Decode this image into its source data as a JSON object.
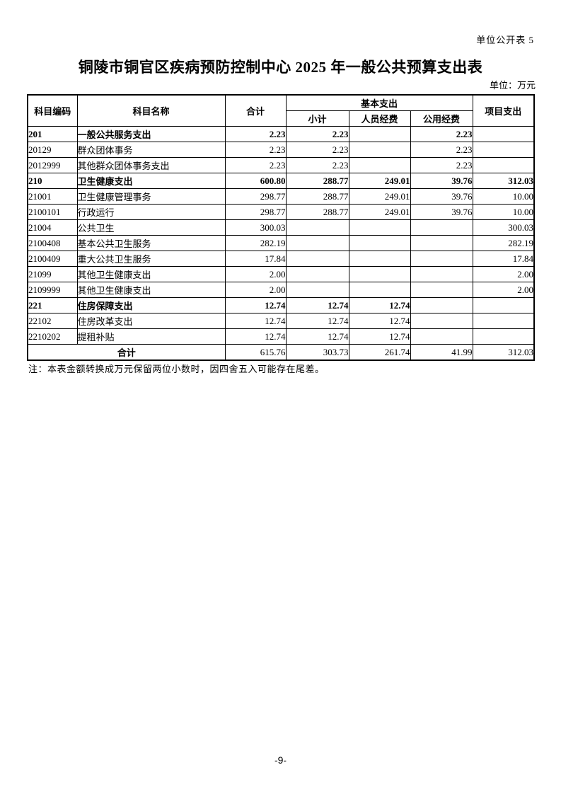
{
  "page": {
    "corner_label": "单位公开表 5",
    "title": "铜陵市铜官区疾病预防控制中心 2025 年一般公共预算支出表",
    "unit_label": "单位：万元",
    "note": "注：本表金额转换成万元保留两位小数时，因四舍五入可能存在尾差。",
    "page_number": "-9-"
  },
  "table": {
    "headers": {
      "code": "科目编码",
      "name": "科目名称",
      "total": "合计",
      "basic_group": "基本支出",
      "basic_subtotal": "小计",
      "personnel": "人员经费",
      "public_funds": "公用经费",
      "project": "项目支出"
    },
    "rows": [
      {
        "code": "201",
        "name": "一般公共服务支出",
        "indent": 0,
        "bold": true,
        "total": "2.23",
        "subtotal": "2.23",
        "personnel": "",
        "public_funds": "2.23",
        "project": ""
      },
      {
        "code": "20129",
        "name": "群众团体事务",
        "indent": 1,
        "bold": false,
        "total": "2.23",
        "subtotal": "2.23",
        "personnel": "",
        "public_funds": "2.23",
        "project": ""
      },
      {
        "code": "2012999",
        "name": "其他群众团体事务支出",
        "indent": 2,
        "bold": false,
        "total": "2.23",
        "subtotal": "2.23",
        "personnel": "",
        "public_funds": "2.23",
        "project": ""
      },
      {
        "code": "210",
        "name": "卫生健康支出",
        "indent": 0,
        "bold": true,
        "total": "600.80",
        "subtotal": "288.77",
        "personnel": "249.01",
        "public_funds": "39.76",
        "project": "312.03"
      },
      {
        "code": "21001",
        "name": "卫生健康管理事务",
        "indent": 1,
        "bold": false,
        "total": "298.77",
        "subtotal": "288.77",
        "personnel": "249.01",
        "public_funds": "39.76",
        "project": "10.00"
      },
      {
        "code": "2100101",
        "name": "行政运行",
        "indent": 2,
        "bold": false,
        "total": "298.77",
        "subtotal": "288.77",
        "personnel": "249.01",
        "public_funds": "39.76",
        "project": "10.00"
      },
      {
        "code": "21004",
        "name": "公共卫生",
        "indent": 1,
        "bold": false,
        "total": "300.03",
        "subtotal": "",
        "personnel": "",
        "public_funds": "",
        "project": "300.03"
      },
      {
        "code": "2100408",
        "name": "基本公共卫生服务",
        "indent": 2,
        "bold": false,
        "total": "282.19",
        "subtotal": "",
        "personnel": "",
        "public_funds": "",
        "project": "282.19"
      },
      {
        "code": "2100409",
        "name": "重大公共卫生服务",
        "indent": 2,
        "bold": false,
        "total": "17.84",
        "subtotal": "",
        "personnel": "",
        "public_funds": "",
        "project": "17.84"
      },
      {
        "code": "21099",
        "name": "其他卫生健康支出",
        "indent": 1,
        "bold": false,
        "total": "2.00",
        "subtotal": "",
        "personnel": "",
        "public_funds": "",
        "project": "2.00"
      },
      {
        "code": "2109999",
        "name": "其他卫生健康支出",
        "indent": 2,
        "bold": false,
        "total": "2.00",
        "subtotal": "",
        "personnel": "",
        "public_funds": "",
        "project": "2.00"
      },
      {
        "code": "221",
        "name": "住房保障支出",
        "indent": 0,
        "bold": true,
        "total": "12.74",
        "subtotal": "12.74",
        "personnel": "12.74",
        "public_funds": "",
        "project": ""
      },
      {
        "code": "22102",
        "name": "住房改革支出",
        "indent": 1,
        "bold": false,
        "total": "12.74",
        "subtotal": "12.74",
        "personnel": "12.74",
        "public_funds": "",
        "project": ""
      },
      {
        "code": "2210202",
        "name": "提租补贴",
        "indent": 2,
        "bold": false,
        "total": "12.74",
        "subtotal": "12.74",
        "personnel": "12.74",
        "public_funds": "",
        "project": ""
      }
    ],
    "total_row": {
      "label": "合计",
      "total": "615.76",
      "subtotal": "303.73",
      "personnel": "261.74",
      "public_funds": "41.99",
      "project": "312.03"
    }
  }
}
